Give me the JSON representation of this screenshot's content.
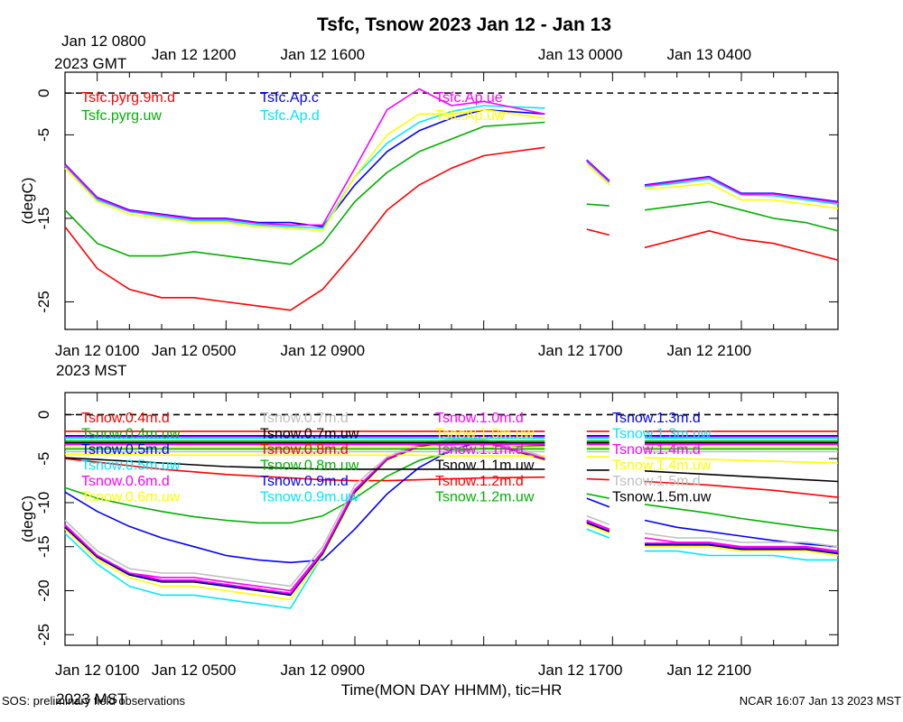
{
  "title": "Tsfc, Tsnow 2023 Jan 12 - Jan 13",
  "footer_left": "SOS: preliminary field observations",
  "footer_right": "NCAR 16:07 Jan 13 2023 MST",
  "xlabel": "Time(MON DAY HHMM), tic=HR",
  "top_axis": {
    "tz_date": "Jan 12 0800",
    "tz_label": "2023 GMT",
    "labels": [
      {
        "text": "Jan 12 1200",
        "hour": 4
      },
      {
        "text": "Jan 12 1600",
        "hour": 8
      },
      {
        "text": "Jan 13 0000",
        "hour": 16
      },
      {
        "text": "Jan 13 0400",
        "hour": 20
      }
    ]
  },
  "bottom_axis": {
    "tz_date": "Jan 12 0100",
    "tz_label": "2023 MST",
    "labels": [
      {
        "text": "Jan 12 0500",
        "hour": 4
      },
      {
        "text": "Jan 12 0900",
        "hour": 8
      },
      {
        "text": "Jan 12 1700",
        "hour": 16
      },
      {
        "text": "Jan 12 2100",
        "hour": 20
      }
    ]
  },
  "chart_data": [
    {
      "type": "line",
      "title": "Tsfc",
      "ylabel": "(degC)",
      "xlim": [
        0,
        24
      ],
      "ylim": [
        -28.3,
        2.5
      ],
      "yticks": [
        0,
        -5,
        -15,
        -25
      ],
      "hours_x": [
        0,
        1,
        2,
        3,
        4,
        5,
        6,
        7,
        8,
        9,
        10,
        11,
        12,
        13,
        14.9,
        15.8,
        16.2,
        16.9,
        17.1,
        18,
        19,
        20,
        21,
        22,
        23,
        24
      ],
      "series": [
        {
          "name": "Tsfc.pyrg.9m.d",
          "color": "#ff0000",
          "values": [
            -16,
            -21,
            -23.5,
            -24.5,
            -24.5,
            -25,
            -25.5,
            -26,
            -23.5,
            -19,
            -14,
            -11,
            -9,
            -7.5,
            -6.5,
            null,
            -16.3,
            -17,
            null,
            -18.5,
            -17.5,
            -16.5,
            -17.5,
            -18,
            -19,
            -20
          ]
        },
        {
          "name": "Tsfc.pyrg.uw",
          "color": "#00b000",
          "values": [
            -14,
            -18,
            -19.5,
            -19.5,
            -19,
            -19.5,
            -20,
            -20.5,
            -18,
            -13,
            -9.5,
            -7,
            -5.5,
            -4,
            -3.5,
            null,
            -13.3,
            -13.5,
            null,
            -14,
            -13.5,
            -13,
            -14,
            -15,
            -15.5,
            -16.5
          ]
        },
        {
          "name": "Tsfc.Ap.c",
          "color": "#0000ff",
          "values": [
            -8.5,
            -12.5,
            -14,
            -14.5,
            -15,
            -15,
            -15.5,
            -15.5,
            -16,
            -11,
            -7,
            -4.5,
            -3,
            -2,
            -2.5,
            null,
            -8,
            -10.5,
            null,
            -11,
            -10.5,
            -10,
            -12,
            -12,
            -12.5,
            -13
          ]
        },
        {
          "name": "Tsfc.Ap.d",
          "color": "#00e5ff",
          "values": [
            -8.7,
            -12.8,
            -14.2,
            -14.8,
            -15.3,
            -15.3,
            -15.8,
            -16,
            -16.2,
            -10,
            -6,
            -3.5,
            -2.2,
            -1.5,
            -1.8,
            null,
            -8.2,
            -10.7,
            null,
            -11.2,
            -10.8,
            -10.3,
            -12.2,
            -12.3,
            -12.8,
            -13.3
          ]
        },
        {
          "name": "Tsfc.Ap.ue",
          "color": "#ff00ff",
          "values": [
            -8.6,
            -12.6,
            -14.1,
            -14.6,
            -15.1,
            -15.1,
            -15.6,
            -15.8,
            -15.8,
            -9,
            -2,
            0.5,
            -1.5,
            -1,
            -2.5,
            null,
            -8.1,
            -10.6,
            null,
            -11.1,
            -10.6,
            -10.1,
            -12.1,
            -12.1,
            -12.6,
            -13.1
          ]
        },
        {
          "name": "Tsfc.Ap.uw",
          "color": "#ffff00",
          "values": [
            -9,
            -13,
            -14.5,
            -15,
            -15.5,
            -15.5,
            -16,
            -16.2,
            -16.5,
            -10,
            -5,
            -2.5,
            -2.5,
            -2,
            -3,
            null,
            -8.5,
            -11,
            null,
            -11.5,
            -11.2,
            -10.8,
            -12.8,
            -12.8,
            -13.3,
            -13.8
          ]
        }
      ]
    },
    {
      "type": "line",
      "title": "Tsnow",
      "ylabel": "(degC)",
      "xlim": [
        0,
        24
      ],
      "ylim": [
        -26.2,
        2.5
      ],
      "yticks": [
        0,
        -5,
        -10,
        -15,
        -20,
        -25
      ],
      "hours_x": [
        0,
        1,
        2,
        3,
        4,
        5,
        6,
        7,
        8,
        9,
        10,
        11,
        12,
        13,
        14.9,
        15.8,
        16.2,
        16.9,
        17.1,
        18,
        19,
        20,
        21,
        22,
        23,
        24
      ],
      "series": [
        {
          "name": "Tsnow.0.4m.d",
          "color": "#ff0000",
          "values": [
            -5,
            -5.4,
            -5.8,
            -6.2,
            -6.5,
            -6.8,
            -7,
            -7.2,
            -7.4,
            -7.5,
            -7.5,
            -7.4,
            -7.3,
            -7.2,
            -7.1,
            null,
            -7.3,
            -7.4,
            null,
            -7.6,
            -7.8,
            -8,
            -8.3,
            -8.6,
            -9,
            -9.4
          ]
        },
        {
          "name": "Tsnow.0.4m.uw",
          "color": "#00b000",
          "values": [
            -8.3,
            -9.5,
            -10.3,
            -11,
            -11.6,
            -12,
            -12.3,
            -12.3,
            -11.5,
            -9.5,
            -7,
            -5.2,
            -4.2,
            -3.8,
            -3.5,
            null,
            -9,
            -9.5,
            null,
            -10.2,
            -10.7,
            -11.2,
            -11.8,
            -12.3,
            -12.8,
            -13.2
          ]
        },
        {
          "name": "Tsnow.0.5m.d",
          "color": "#0000ff",
          "values": [
            -8.8,
            -11,
            -12.7,
            -14,
            -15,
            -16,
            -16.5,
            -16.8,
            -16.5,
            -13,
            -9,
            -6,
            -4,
            -3,
            -3.5,
            null,
            -9.5,
            -10.5,
            null,
            -12,
            -12.8,
            -13.3,
            -13.8,
            -14.3,
            -14.7,
            -15
          ]
        },
        {
          "name": "Tsnow.0.5m.uw",
          "color": "#00e5ff",
          "values": [
            -13.5,
            -17,
            -19.5,
            -20.5,
            -20.5,
            -21,
            -21.5,
            -22,
            -16,
            -9,
            -5,
            -3.5,
            -3.5,
            -3,
            -5,
            null,
            -13,
            -14,
            null,
            -15.5,
            -15.5,
            -16,
            -16,
            -16,
            -16.5,
            -16.5
          ]
        },
        {
          "name": "Tsnow.0.6m.d",
          "color": "#ff00ff",
          "values": [
            -12.5,
            -16,
            -18,
            -18.5,
            -18.5,
            -19,
            -19.5,
            -20,
            -15.5,
            -8.5,
            -5,
            -3.5,
            -3,
            -3,
            -5,
            null,
            -12,
            -13,
            null,
            -14,
            -14.5,
            -14.5,
            -15,
            -15,
            -15,
            -15.5
          ]
        },
        {
          "name": "Tsnow.0.6m.uw",
          "color": "#ffff00",
          "values": [
            -13,
            -16.5,
            -18.5,
            -19.5,
            -19.5,
            -20,
            -20.5,
            -21,
            -16,
            -9,
            -5.2,
            -3.7,
            -3.2,
            -3.2,
            -5.2,
            null,
            -12.5,
            -13.5,
            null,
            -15,
            -15,
            -15,
            -15.5,
            -15.5,
            -15.5,
            -16
          ]
        },
        {
          "name": "Tsnow.0.7m.d",
          "color": "#c0c0c0",
          "values": [
            -12,
            -15.5,
            -17.5,
            -18,
            -18,
            -18.5,
            -19,
            -19.5,
            -15,
            -8,
            -4.8,
            -3.3,
            -2.8,
            -2.8,
            -4.8,
            null,
            -11.5,
            -12.5,
            null,
            -13.5,
            -14,
            -14,
            -14.5,
            -14.5,
            -14.5,
            -15
          ]
        },
        {
          "name": "Tsnow.0.7m.uw",
          "color": "#000000",
          "values": [
            -12.8,
            -16.2,
            -18.2,
            -19,
            -19,
            -19.5,
            -20,
            -20.5,
            -15.8,
            -8.8,
            -5.1,
            -3.6,
            -3.1,
            -3.1,
            -5.1,
            null,
            -12.3,
            -13.3,
            null,
            -14.8,
            -14.8,
            -14.8,
            -15.3,
            -15.3,
            -15.3,
            -15.8
          ]
        },
        {
          "name": "Tsnow.0.8m.d",
          "color": "#ff0000",
          "values": [
            -12.6,
            -16,
            -18,
            -18.8,
            -18.8,
            -19.3,
            -19.8,
            -20.3,
            -15.6,
            -8.6,
            -5,
            -3.5,
            -3,
            -3,
            -5,
            null,
            -12.1,
            -13.1,
            null,
            -14.6,
            -14.6,
            -14.6,
            -15.1,
            -15.1,
            -15.1,
            -15.6
          ]
        },
        {
          "name": "Tsnow.0.8m.uw",
          "color": "#00b000",
          "values": [
            -3.9,
            -3.9,
            -3.9,
            -3.9,
            -3.9,
            -3.9,
            -3.9,
            -3.9,
            -3.9,
            -3.9,
            -3.9,
            -3.9,
            -3.9,
            -3.9,
            -3.9,
            null,
            -3.9,
            -3.9,
            null,
            -3.9,
            -3.9,
            -3.9,
            -3.9,
            -3.9,
            -3.9,
            -3.9
          ]
        },
        {
          "name": "Tsnow.0.9m.d",
          "color": "#0000ff",
          "values": [
            -12.7,
            -16.1,
            -18.1,
            -18.9,
            -18.9,
            -19.4,
            -19.9,
            -20.4,
            -15.7,
            -8.7,
            -5.05,
            -3.55,
            -3.05,
            -3.05,
            -5.05,
            null,
            -12.2,
            -13.2,
            null,
            -14.7,
            -14.7,
            -14.7,
            -15.2,
            -15.2,
            -15.2,
            -15.7
          ]
        },
        {
          "name": "Tsnow.0.9m.uw",
          "color": "#00e5ff",
          "values": [
            -3.3,
            -3.3,
            -3.3,
            -3.3,
            -3.3,
            -3.3,
            -3.3,
            -3.3,
            -3.3,
            -3.3,
            -3.3,
            -3.3,
            -3.3,
            -3.3,
            -3.3,
            null,
            -3.3,
            -3.3,
            null,
            -3.3,
            -3.3,
            -3.3,
            -3.3,
            -3.3,
            -3.3,
            -3.3
          ]
        },
        {
          "name": "Tsnow.1.0m.d",
          "color": "#ff00ff",
          "values": [
            -2.5,
            -2.5,
            -2.5,
            -2.5,
            -2.5,
            -2.5,
            -2.5,
            -2.5,
            -2.5,
            -2.5,
            -2.5,
            -2.5,
            -2.5,
            -2.5,
            -2.5,
            null,
            -2.5,
            -2.5,
            null,
            -2.5,
            -2.5,
            -2.5,
            -2.5,
            -2.5,
            -2.5,
            -2.5
          ]
        },
        {
          "name": "Tsnow.1.0m.uw",
          "color": "#ffff00",
          "values": [
            -4.5,
            -4.5,
            -4.5,
            -4.6,
            -4.6,
            -4.6,
            -4.6,
            -4.6,
            -4.6,
            -4.6,
            -4.6,
            -4.6,
            -4.7,
            -4.7,
            -4.7,
            null,
            -4.8,
            -4.8,
            null,
            -4.9,
            -5,
            -5.1,
            -5.2,
            -5.3,
            -5.4,
            -5.5
          ]
        },
        {
          "name": "Tsnow.1.1m.d",
          "color": "#ff00ff",
          "values": [
            -12.6,
            -16,
            -18,
            -18.8,
            -18.8,
            -19.3,
            -19.8,
            -20.3,
            -15.6,
            -8.6,
            -5,
            -3.5,
            -3,
            -3,
            -5,
            null,
            -12.1,
            -13.1,
            null,
            -14.6,
            -14.6,
            -14.6,
            -15.1,
            -15.1,
            -15.1,
            -15.6
          ]
        },
        {
          "name": "Tsnow.1.1m.uw",
          "color": "#000000",
          "values": [
            -3.2,
            -3.2,
            -3.2,
            -3.2,
            -3.2,
            -3.2,
            -3.2,
            -3.2,
            -3.2,
            -3.2,
            -3.2,
            -3.2,
            -3.2,
            -3.2,
            -3.2,
            null,
            -3.2,
            -3.2,
            null,
            -3.2,
            -3.2,
            -3.2,
            -3.2,
            -3.2,
            -3.2,
            -3.2
          ]
        },
        {
          "name": "Tsnow.1.2m.d",
          "color": "#ff0000",
          "values": [
            -1.9,
            -1.9,
            -1.9,
            -1.9,
            -1.9,
            -1.9,
            -1.9,
            -1.9,
            -1.9,
            -1.9,
            -1.9,
            -1.9,
            -1.9,
            -1.9,
            -1.9,
            null,
            -1.9,
            -1.9,
            null,
            -1.9,
            -1.9,
            -1.9,
            -1.9,
            -1.9,
            -1.9,
            -1.9
          ]
        },
        {
          "name": "Tsnow.1.2m.uw",
          "color": "#00b000",
          "values": [
            -3.0,
            -3.0,
            -3.0,
            -3.0,
            -3.0,
            -3.0,
            -3.0,
            -3.0,
            -3.0,
            -3.0,
            -3.0,
            -3.0,
            -3.0,
            -3.0,
            -3.0,
            null,
            -3.0,
            -3.0,
            null,
            -3.0,
            -3.0,
            -3.0,
            -3.0,
            -3.0,
            -3.0,
            -3.0
          ]
        },
        {
          "name": "Tsnow.1.3m.d",
          "color": "#0000ff",
          "values": [
            -2.4,
            -2.4,
            -2.4,
            -2.4,
            -2.4,
            -2.4,
            -2.4,
            -2.4,
            -2.4,
            -2.4,
            -2.4,
            -2.4,
            -2.4,
            -2.4,
            -2.4,
            null,
            -2.4,
            -2.4,
            null,
            -2.4,
            -2.4,
            -2.4,
            -2.4,
            -2.4,
            -2.4,
            -2.4
          ]
        },
        {
          "name": "Tsnow.1.3m.uw",
          "color": "#00e5ff",
          "values": [
            -2.7,
            -2.7,
            -2.7,
            -2.7,
            -2.7,
            -2.7,
            -2.7,
            -2.7,
            -2.7,
            -2.7,
            -2.7,
            -2.7,
            -2.7,
            -2.7,
            -2.7,
            null,
            -2.7,
            -2.7,
            null,
            -2.7,
            -2.7,
            -2.7,
            -2.7,
            -2.7,
            -2.7,
            -2.7
          ]
        },
        {
          "name": "Tsnow.1.4m.d",
          "color": "#ff00ff",
          "values": [
            -3.4,
            -3.4,
            -3.4,
            -3.4,
            -3.4,
            -3.4,
            -3.4,
            -3.4,
            -3.4,
            -3.4,
            -3.4,
            -3.4,
            -3.4,
            -3.4,
            -3.4,
            null,
            -3.4,
            -3.4,
            null,
            -3.4,
            -3.4,
            -3.4,
            -3.4,
            -3.4,
            -3.4,
            -3.4
          ]
        },
        {
          "name": "Tsnow.1.4m.uw",
          "color": "#ffff00",
          "values": [
            -3.7,
            -3.7,
            -3.7,
            -3.7,
            -3.7,
            -3.7,
            -3.7,
            -3.7,
            -3.7,
            -3.7,
            -3.7,
            -3.7,
            -3.7,
            -3.7,
            -3.7,
            null,
            -3.7,
            -3.7,
            null,
            -3.7,
            -3.7,
            -3.7,
            -3.7,
            -3.7,
            -3.7,
            -3.7
          ]
        },
        {
          "name": "Tsnow.1.5m.d",
          "color": "#c0c0c0",
          "values": [
            -4.2,
            -4.2,
            -4.2,
            -4.2,
            -4.2,
            -4.2,
            -4.2,
            -4.2,
            -4.2,
            -4.2,
            -4.2,
            -4.2,
            -4.2,
            -4.2,
            -4.2,
            null,
            -4.2,
            -4.2,
            null,
            -4.2,
            -4.2,
            -4.2,
            -4.2,
            -4.2,
            -4.2,
            -4.2
          ]
        },
        {
          "name": "Tsnow.1.5m.uw",
          "color": "#000000",
          "values": [
            -4.9,
            -5.1,
            -5.3,
            -5.5,
            -5.7,
            -5.9,
            -6.0,
            -6.1,
            -6.2,
            -6.2,
            -6.2,
            -6.2,
            -6.2,
            -6.2,
            -6.2,
            null,
            -6.3,
            -6.3,
            null,
            -6.4,
            -6.6,
            -6.8,
            -7.0,
            -7.2,
            -7.4,
            -7.6
          ]
        }
      ]
    }
  ]
}
